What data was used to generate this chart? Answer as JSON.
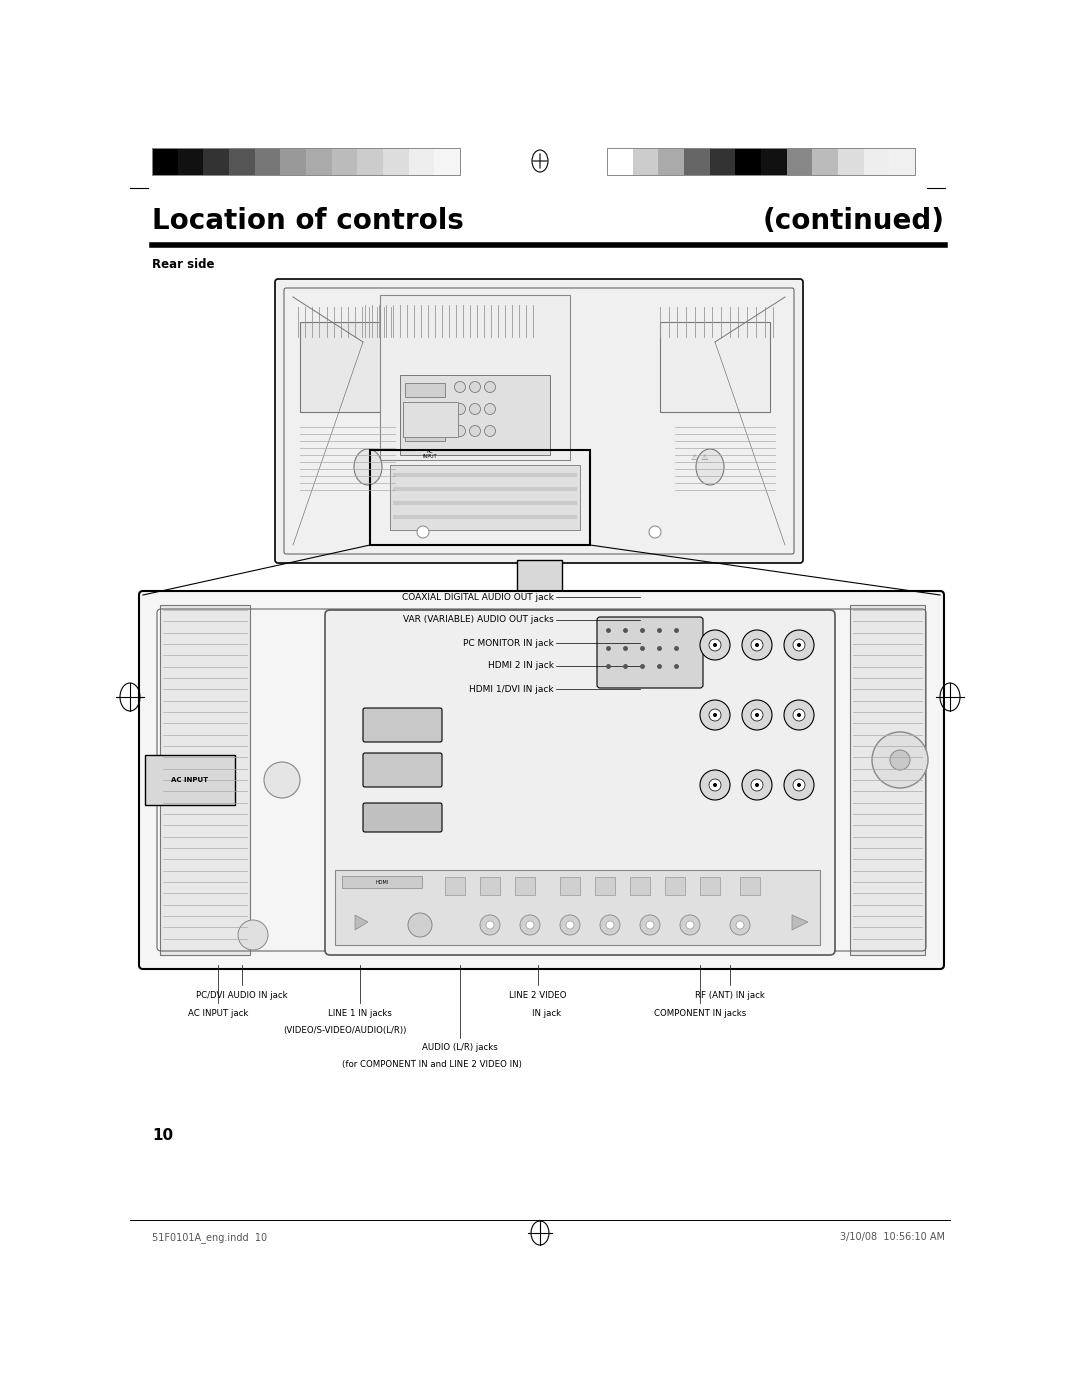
{
  "page_width": 10.8,
  "page_height": 13.97,
  "bg_color": "#ffffff",
  "title_left": "Location of controls",
  "title_right": "(continued)",
  "title_fontsize": 20,
  "section_label": "Rear side",
  "section_label_fontsize": 8.5,
  "footer_left": "51F0101A_eng.indd  10",
  "footer_right": "3/10/08  10:56:10 AM",
  "page_number": "10",
  "left_colors": [
    "#000000",
    "#111111",
    "#333333",
    "#555555",
    "#777777",
    "#999999",
    "#aaaaaa",
    "#bbbbbb",
    "#cccccc",
    "#dddddd",
    "#eeeeee",
    "#f5f5f5"
  ],
  "right_colors": [
    "#ffffff",
    "#cccccc",
    "#aaaaaa",
    "#666666",
    "#333333",
    "#000000",
    "#111111",
    "#888888",
    "#bbbbbb",
    "#dddddd",
    "#eeeeee",
    "#f0f0f0"
  ],
  "annotations_left": [
    "COAXIAL DIGITAL AUDIO OUT jack",
    "VAR (VARIABLE) AUDIO OUT jacks",
    "PC MONITOR IN jack",
    "HDMI 2 IN jack",
    "HDMI 1/DVI IN jack"
  ]
}
